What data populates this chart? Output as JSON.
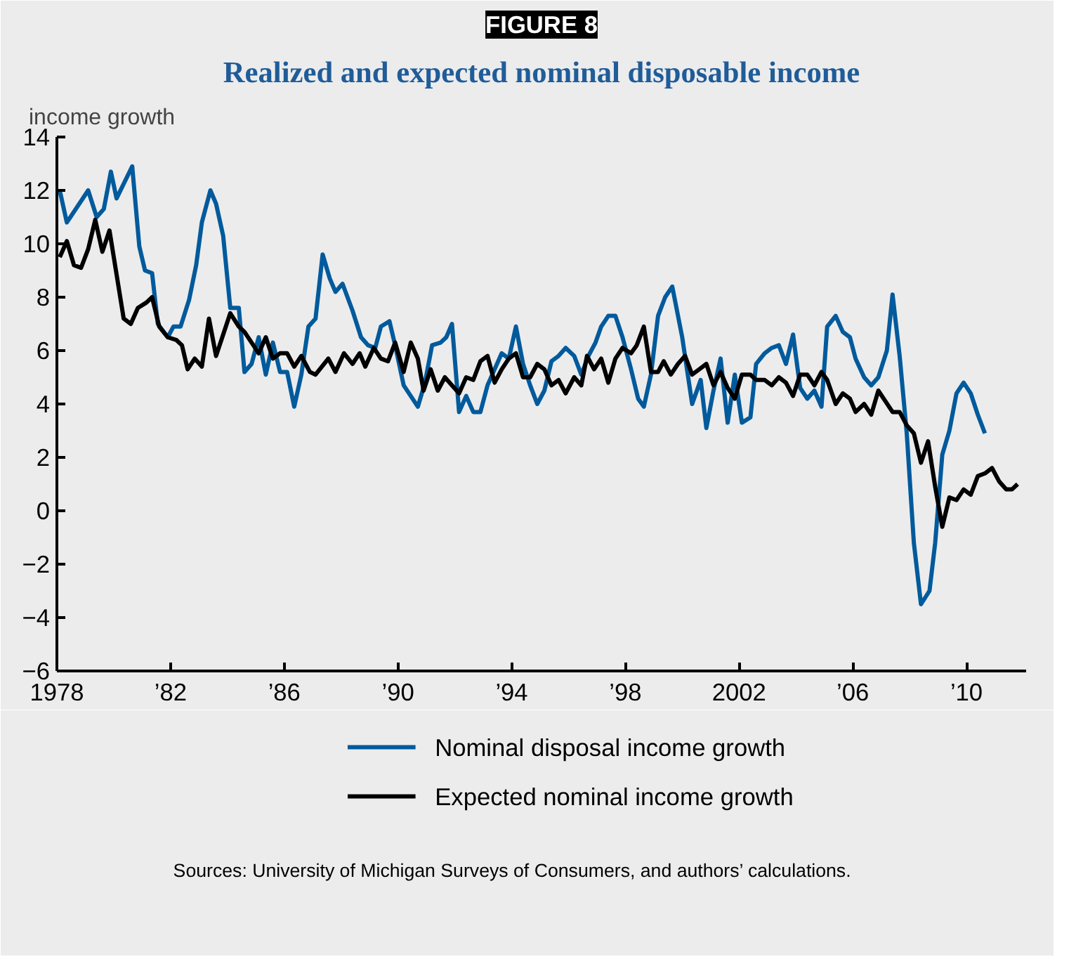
{
  "chart_data": {
    "type": "line",
    "title": "Realized and expected nominal disposable income",
    "ylabel": "income growth",
    "annotations": [
      "FIGURE 8",
      "Sources: University of Michigan Surveys of Consumers, and authors’ calculations."
    ],
    "xlim": [
      1978,
      2012.1
    ],
    "xticks": [
      {
        "value": 1978,
        "label": "1978"
      },
      {
        "value": 1982,
        "label": "’82"
      },
      {
        "value": 1986,
        "label": "’86"
      },
      {
        "value": 1990,
        "label": "’90"
      },
      {
        "value": 1994,
        "label": "’94"
      },
      {
        "value": 1998,
        "label": "’98"
      },
      {
        "value": 2002,
        "label": "2002"
      },
      {
        "value": 2006,
        "label": "’06"
      },
      {
        "value": 2010,
        "label": "’10"
      }
    ],
    "ylim": [
      -6,
      14
    ],
    "yticks": [
      {
        "value": -6,
        "label": "−6"
      },
      {
        "value": -4,
        "label": "−4"
      },
      {
        "value": -2,
        "label": "−2"
      },
      0,
      2,
      4,
      6,
      8,
      10,
      12,
      14
    ],
    "grid": false,
    "legend": "bottom",
    "line_style": "solid",
    "series": [
      {
        "name": "Nominal disposal income growth",
        "color": "#005a9c",
        "x": [
          1978.1,
          1978.35,
          1979.1,
          1979.4,
          1979.65,
          1979.9,
          1980.1,
          1980.65,
          1980.9,
          1981.1,
          1981.35,
          1981.55,
          1981.9,
          1982.1,
          1982.35,
          1982.65,
          1982.9,
          1983.1,
          1983.4,
          1983.6,
          1983.85,
          1984.1,
          1984.4,
          1984.6,
          1984.85,
          1985.1,
          1985.35,
          1985.6,
          1985.85,
          1986.1,
          1986.35,
          1986.6,
          1986.85,
          1987.1,
          1987.35,
          1987.6,
          1987.8,
          1988.05,
          1988.4,
          1988.7,
          1988.95,
          1989.2,
          1989.4,
          1989.7,
          1989.9,
          1990.2,
          1990.45,
          1990.7,
          1990.95,
          1991.2,
          1991.5,
          1991.7,
          1991.9,
          1992.15,
          1992.4,
          1992.65,
          1992.9,
          1993.15,
          1993.4,
          1993.65,
          1993.9,
          1994.15,
          1994.4,
          1994.65,
          1994.9,
          1995.15,
          1995.4,
          1995.65,
          1995.9,
          1996.2,
          1996.45,
          1996.7,
          1996.95,
          1997.15,
          1997.4,
          1997.65,
          1997.9,
          1998.2,
          1998.45,
          1998.65,
          1998.9,
          1999.15,
          1999.4,
          1999.65,
          2000.0,
          2000.35,
          2000.65,
          2000.85,
          2001.1,
          2001.35,
          2001.6,
          2001.85,
          2002.1,
          2002.4,
          2002.6,
          2002.9,
          2003.15,
          2003.4,
          2003.65,
          2003.9,
          2004.15,
          2004.4,
          2004.65,
          2004.9,
          2005.1,
          2005.4,
          2005.65,
          2005.9,
          2006.1,
          2006.4,
          2006.65,
          2006.9,
          2007.2,
          2007.4,
          2007.65,
          2007.9,
          2008.15,
          2008.4,
          2008.7,
          2008.9,
          2009.15,
          2009.4,
          2009.65,
          2009.9,
          2010.15,
          2010.4,
          2010.65
        ],
        "values": [
          12.0,
          10.8,
          12.0,
          11.0,
          11.3,
          12.7,
          11.7,
          12.9,
          9.9,
          9.0,
          8.9,
          7.0,
          6.5,
          6.9,
          6.9,
          7.9,
          9.2,
          10.8,
          12.0,
          11.5,
          10.3,
          7.6,
          7.6,
          5.2,
          5.5,
          6.5,
          5.1,
          6.3,
          5.2,
          5.2,
          3.9,
          5.1,
          6.9,
          7.2,
          9.6,
          8.7,
          8.2,
          8.5,
          7.5,
          6.5,
          6.2,
          6.1,
          6.9,
          7.1,
          6.2,
          4.7,
          4.3,
          3.9,
          4.8,
          6.2,
          6.3,
          6.5,
          7.0,
          3.7,
          4.3,
          3.7,
          3.7,
          4.7,
          5.3,
          5.9,
          5.7,
          6.9,
          5.5,
          4.7,
          4.0,
          4.5,
          5.6,
          5.8,
          6.1,
          5.8,
          5.1,
          5.8,
          6.3,
          6.9,
          7.3,
          7.3,
          6.5,
          5.3,
          4.2,
          3.9,
          5.1,
          7.3,
          8.0,
          8.4,
          6.5,
          4.0,
          4.9,
          3.1,
          4.5,
          5.7,
          3.3,
          5.1,
          3.3,
          3.5,
          5.5,
          5.9,
          6.1,
          6.2,
          5.5,
          6.6,
          4.6,
          4.2,
          4.5,
          3.9,
          6.9,
          7.3,
          6.7,
          6.5,
          5.7,
          5.0,
          4.7,
          5.0,
          6.0,
          8.1,
          5.8,
          2.9,
          -1.2,
          -3.5,
          -3.0,
          -1.2,
          2.1,
          3.0,
          4.4,
          4.8,
          4.4,
          3.6,
          2.9
        ]
      },
      {
        "name": "Expected nominal income growth",
        "color": "#000000",
        "x": [
          1978.1,
          1978.35,
          1978.6,
          1978.85,
          1979.1,
          1979.35,
          1979.6,
          1979.85,
          1980.35,
          1980.6,
          1980.85,
          1981.15,
          1981.35,
          1981.6,
          1981.9,
          1982.2,
          1982.4,
          1982.6,
          1982.85,
          1983.1,
          1983.35,
          1983.6,
          1983.85,
          1984.1,
          1984.4,
          1984.6,
          1984.85,
          1985.1,
          1985.35,
          1985.6,
          1985.85,
          1986.1,
          1986.35,
          1986.6,
          1986.9,
          1987.1,
          1987.55,
          1987.8,
          1988.1,
          1988.4,
          1988.65,
          1988.85,
          1989.15,
          1989.4,
          1989.65,
          1989.9,
          1990.2,
          1990.45,
          1990.7,
          1990.9,
          1991.15,
          1991.4,
          1991.65,
          1991.9,
          1992.15,
          1992.4,
          1992.65,
          1992.9,
          1993.15,
          1993.4,
          1993.65,
          1993.9,
          1994.15,
          1994.4,
          1994.65,
          1994.9,
          1995.15,
          1995.4,
          1995.65,
          1995.9,
          1996.2,
          1996.45,
          1996.65,
          1996.9,
          1997.15,
          1997.4,
          1997.65,
          1997.9,
          1998.2,
          1998.4,
          1998.65,
          1998.9,
          1999.15,
          1999.35,
          1999.6,
          1999.85,
          2000.1,
          2000.35,
          2000.6,
          2000.85,
          2001.1,
          2001.35,
          2001.6,
          2001.85,
          2002.1,
          2002.4,
          2002.6,
          2002.9,
          2003.15,
          2003.4,
          2003.65,
          2003.9,
          2004.15,
          2004.4,
          2004.65,
          2004.9,
          2005.1,
          2005.4,
          2005.65,
          2005.9,
          2006.1,
          2006.4,
          2006.65,
          2006.9,
          2007.15,
          2007.4,
          2007.65,
          2007.9,
          2008.15,
          2008.4,
          2008.65,
          2008.9,
          2009.15,
          2009.4,
          2009.65,
          2009.9,
          2010.15,
          2010.4,
          2010.65,
          2010.9,
          2011.15,
          2011.4,
          2011.6,
          2011.8
        ],
        "values": [
          9.5,
          10.1,
          9.2,
          9.1,
          9.8,
          10.9,
          9.7,
          10.5,
          7.2,
          7.0,
          7.6,
          7.8,
          8.0,
          6.9,
          6.5,
          6.4,
          6.2,
          5.3,
          5.7,
          5.4,
          7.2,
          5.8,
          6.6,
          7.4,
          6.9,
          6.7,
          6.3,
          5.9,
          6.5,
          5.7,
          5.9,
          5.9,
          5.4,
          5.8,
          5.2,
          5.1,
          5.7,
          5.2,
          5.9,
          5.5,
          5.9,
          5.4,
          6.1,
          5.7,
          5.6,
          6.3,
          5.2,
          6.3,
          5.7,
          4.5,
          5.3,
          4.5,
          5.0,
          4.7,
          4.4,
          5.0,
          4.9,
          5.6,
          5.8,
          4.8,
          5.3,
          5.7,
          5.9,
          5.0,
          5.0,
          5.5,
          5.3,
          4.7,
          4.9,
          4.4,
          5.0,
          4.7,
          5.8,
          5.3,
          5.7,
          4.8,
          5.7,
          6.1,
          5.9,
          6.2,
          6.9,
          5.2,
          5.2,
          5.6,
          5.1,
          5.5,
          5.8,
          5.1,
          5.3,
          5.5,
          4.7,
          5.2,
          4.6,
          4.2,
          5.1,
          5.1,
          4.9,
          4.9,
          4.7,
          5.0,
          4.8,
          4.3,
          5.1,
          5.1,
          4.7,
          5.2,
          4.9,
          4.0,
          4.4,
          4.2,
          3.7,
          4.0,
          3.6,
          4.5,
          4.1,
          3.7,
          3.7,
          3.2,
          2.9,
          1.8,
          2.6,
          0.9,
          -0.6,
          0.5,
          0.4,
          0.8,
          0.6,
          1.3,
          1.4,
          1.6,
          1.1,
          0.8,
          0.8,
          1.0
        ]
      }
    ]
  }
}
